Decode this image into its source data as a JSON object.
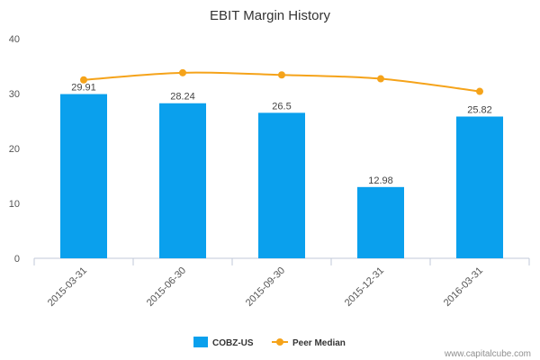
{
  "chart_data": {
    "type": "bar",
    "title": "EBIT Margin History",
    "xlabel": "",
    "ylabel": "",
    "ylim": [
      0,
      40
    ],
    "yticks": [
      0,
      10,
      20,
      30,
      40
    ],
    "categories": [
      "2015-03-31",
      "2015-06-30",
      "2015-09-30",
      "2015-12-31",
      "2016-03-31"
    ],
    "series": [
      {
        "name": "COBZ-US",
        "kind": "bar",
        "color": "#0aa0ed",
        "values": [
          29.91,
          28.24,
          26.5,
          12.98,
          25.82
        ],
        "labels": [
          "29.91",
          "28.24",
          "26.5",
          "12.98",
          "25.82"
        ]
      },
      {
        "name": "Peer Median",
        "kind": "line",
        "color": "#f5a31a",
        "values": [
          32.5,
          33.8,
          33.4,
          32.7,
          30.4
        ]
      }
    ],
    "grid": false,
    "legend_position": "bottom-center"
  },
  "credit": "www.capitalcube.com"
}
